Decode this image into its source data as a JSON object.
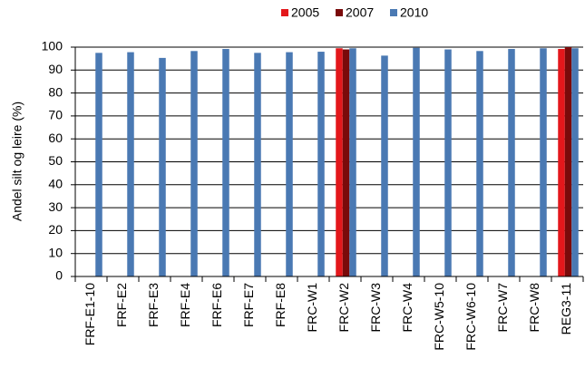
{
  "chart_data": {
    "type": "bar",
    "y_label": "Andel silt og leire (%)",
    "categories": [
      "FRF-E1-10",
      "FRF-E2",
      "FRF-E3",
      "FRF-E4",
      "FRF-E6",
      "FRF-E7",
      "FRF-E8",
      "FRC-W1",
      "FRC-W2",
      "FRC-W3",
      "FRC-W4",
      "FRC-W5-10",
      "FRC-W6-10",
      "FRC-W7",
      "FRC-W8",
      "REG3-11"
    ],
    "series": [
      {
        "name": "2005",
        "color": "#e3171b",
        "values": [
          null,
          null,
          null,
          null,
          null,
          null,
          null,
          null,
          99.5,
          null,
          null,
          null,
          null,
          null,
          null,
          99.2
        ]
      },
      {
        "name": "2007",
        "color": "#7a0a0a",
        "values": [
          null,
          null,
          null,
          null,
          null,
          null,
          null,
          null,
          99,
          null,
          null,
          null,
          null,
          null,
          null,
          100
        ]
      },
      {
        "name": "2010",
        "color": "#4a79b3",
        "values": [
          97.5,
          97.8,
          95.3,
          98.3,
          99.2,
          97.5,
          97.8,
          98,
          99.5,
          96.3,
          99.7,
          99,
          98.3,
          99.2,
          99.5,
          99.5
        ]
      }
    ],
    "ylim": [
      0,
      100
    ],
    "yticks": [
      0,
      10,
      20,
      30,
      40,
      50,
      60,
      70,
      80,
      90,
      100
    ],
    "grid": true,
    "legend": "top"
  }
}
